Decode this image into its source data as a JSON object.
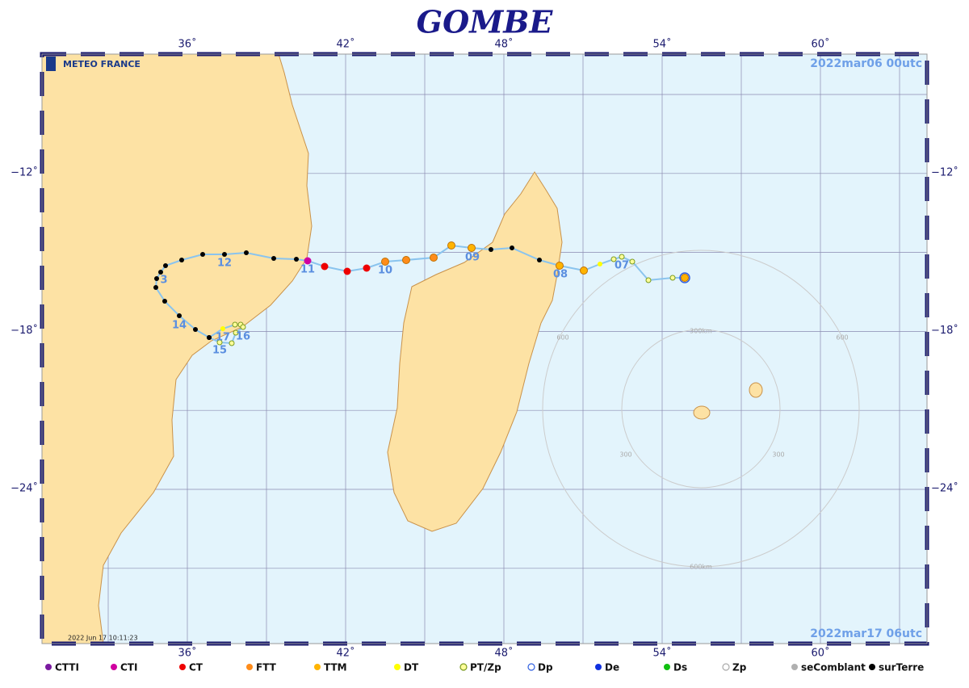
{
  "title": "GOMBE",
  "logo": "METEO FRANCE",
  "date_start": "2022mar06  00utc",
  "date_end": "2022mar17  06utc",
  "stamp": "2022 Jun 17 10:11:23",
  "lon_labels": [
    "36˚",
    "42˚",
    "48˚",
    "54˚",
    "60˚"
  ],
  "lat_labels": [
    "−12˚",
    "−18˚",
    "−24˚"
  ],
  "track_labels": [
    "12",
    "11",
    "10",
    "09",
    "08",
    "07",
    "3",
    "14",
    "17",
    "16",
    "15"
  ],
  "radius_labels": [
    "300km",
    "600km",
    "300",
    "300",
    "600",
    "600"
  ],
  "legend": [
    {
      "label": "CTTI",
      "color": "#7a1aa0"
    },
    {
      "label": "CTI",
      "color": "#d000a0"
    },
    {
      "label": "CT",
      "color": "#ee0000"
    },
    {
      "label": "FTT",
      "color": "#ff8c1a"
    },
    {
      "label": "TTM",
      "color": "#ffb400"
    },
    {
      "label": "DT",
      "color": "#ffff00"
    },
    {
      "label": "PT/Zp",
      "color": "#ffff99"
    },
    {
      "label": "Dp",
      "color": "#ffffff"
    },
    {
      "label": "De",
      "color": "#1030e0"
    },
    {
      "label": "Ds",
      "color": "#10c010"
    },
    {
      "label": "Zp",
      "color": "#ffffff"
    },
    {
      "label": "seComblant",
      "color": "#b0b0b0"
    },
    {
      "label": "surTerre",
      "color": "#000000"
    }
  ]
}
